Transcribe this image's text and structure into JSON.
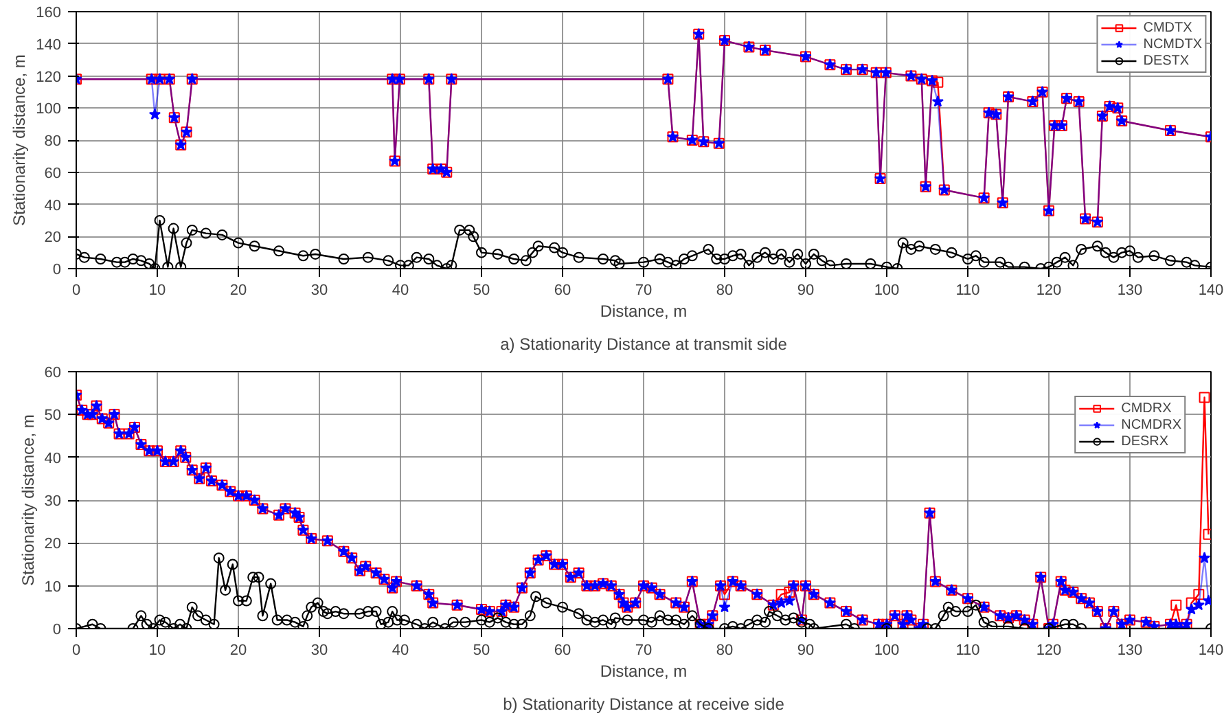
{
  "chart_data": [
    {
      "type": "line",
      "title": "a) Stationarity Distance at transmit side",
      "xlabel": "Distance, m",
      "ylabel": "Stationarity distance, m",
      "xlim": [
        0,
        140
      ],
      "xticks": [
        0,
        10,
        20,
        30,
        40,
        50,
        60,
        70,
        80,
        90,
        100,
        110,
        120,
        130,
        140
      ],
      "ylim": [
        0,
        160
      ],
      "yticks": [
        0,
        20,
        40,
        60,
        80,
        100,
        120,
        140,
        160
      ],
      "grid": true,
      "legend": "top right",
      "series": [
        {
          "name": "CMDTX",
          "color": "#ff0000",
          "marker": "square",
          "x": [
            0,
            9.3,
            10.3,
            11.5,
            12.1,
            12.9,
            13.6,
            14.3,
            39,
            39.3,
            39.9,
            43.5,
            44,
            45,
            45.7,
            46.3,
            73,
            73.6,
            76,
            76.8,
            77.4,
            79.3,
            80,
            83,
            85,
            90,
            93,
            95,
            97,
            98.7,
            99.2,
            99.9,
            103,
            104.3,
            104.8,
            105.6,
            106.3,
            107.1,
            112,
            112.6,
            113.5,
            114.3,
            115,
            118,
            119.2,
            120,
            120.7,
            121.6,
            122.2,
            123.7,
            124.5,
            126,
            126.6,
            127.5,
            128.5,
            129,
            135,
            140
          ],
          "values": [
            118,
            118,
            118,
            118,
            94,
            77,
            85,
            118,
            118,
            67,
            118,
            118,
            62,
            62,
            60,
            118,
            118,
            82,
            80,
            146,
            79,
            78,
            142,
            138,
            136,
            132,
            127,
            124,
            124,
            122,
            56,
            122,
            120,
            118,
            51,
            117,
            116,
            49,
            44,
            97,
            96,
            41,
            107,
            104,
            110,
            36,
            89,
            89,
            106,
            104,
            31,
            29,
            95,
            101,
            100,
            92,
            86,
            82
          ]
        },
        {
          "name": "NCMDTX",
          "color": "#0000ff",
          "marker": "star",
          "x": [
            0,
            9.3,
            9.7,
            10.3,
            11.5,
            12.1,
            12.9,
            13.6,
            14.3,
            39,
            39.3,
            39.9,
            43.5,
            44,
            45,
            45.7,
            46.3,
            73,
            73.6,
            76,
            76.8,
            77.4,
            79.3,
            80,
            83,
            85,
            90,
            93,
            95,
            97,
            98.7,
            99.2,
            99.9,
            103,
            104.3,
            104.8,
            105.6,
            106.3,
            107.1,
            112,
            112.6,
            113.5,
            114.3,
            115,
            118,
            119.2,
            120,
            120.7,
            121.6,
            122.2,
            123.7,
            124.5,
            126,
            126.6,
            127.5,
            128.5,
            129,
            135,
            140
          ],
          "values": [
            118,
            118,
            96,
            118,
            118,
            94,
            77,
            85,
            118,
            118,
            67,
            118,
            118,
            62,
            62,
            60,
            118,
            118,
            82,
            80,
            146,
            79,
            78,
            142,
            138,
            136,
            132,
            127,
            124,
            124,
            122,
            56,
            122,
            120,
            118,
            51,
            117,
            104,
            49,
            44,
            97,
            96,
            41,
            107,
            104,
            110,
            36,
            89,
            89,
            106,
            104,
            31,
            29,
            95,
            101,
            100,
            92,
            86,
            82
          ]
        },
        {
          "name": "DESTX",
          "color": "#000000",
          "marker": "circle",
          "x": [
            0,
            1,
            3,
            5,
            6,
            7,
            8,
            9,
            9.7,
            10.3,
            11.3,
            12,
            12.9,
            13.6,
            14.3,
            16,
            18,
            20,
            22,
            25,
            28,
            29.5,
            33,
            36,
            38.5,
            40,
            41,
            42,
            43.5,
            44.5,
            45.7,
            46.3,
            47.3,
            48.5,
            49,
            50,
            52,
            54,
            55.5,
            56.3,
            57,
            59,
            60,
            62,
            65,
            66.5,
            67,
            70,
            72,
            73,
            74,
            75,
            76,
            78,
            79,
            80,
            81,
            82,
            83,
            84,
            85,
            86,
            87,
            88,
            89,
            90,
            91,
            92,
            93,
            95,
            98,
            100,
            101.3,
            102,
            103,
            104,
            106,
            108,
            110,
            111,
            112,
            114,
            115,
            117,
            119,
            120,
            121,
            122,
            123,
            124,
            126,
            127,
            128,
            129,
            130,
            131,
            133,
            135,
            137,
            138,
            140
          ],
          "values": [
            9,
            7,
            6,
            4,
            4,
            6,
            5,
            3,
            0,
            30,
            1,
            25,
            1,
            16,
            24,
            22,
            21,
            16,
            14,
            11,
            8,
            9,
            6,
            7,
            5,
            2,
            2,
            7,
            6,
            2,
            0,
            2,
            24,
            24,
            20,
            10,
            9,
            6,
            5,
            10,
            14,
            13,
            10,
            7,
            6,
            5,
            3,
            4,
            6,
            4,
            2,
            6,
            8,
            12,
            6,
            6,
            8,
            9,
            2,
            7,
            10,
            6,
            9,
            4,
            9,
            3,
            9,
            5,
            2,
            3,
            3,
            1,
            0,
            16,
            12,
            14,
            12,
            10,
            6,
            8,
            4,
            4,
            1,
            1,
            0,
            1,
            4,
            7,
            2,
            12,
            14,
            10,
            7,
            10,
            11,
            7,
            8,
            5,
            4,
            2,
            1
          ]
        }
      ]
    },
    {
      "type": "line",
      "title": "b) Stationarity Distance at receive side",
      "xlabel": "Distance, m",
      "ylabel": "Stationarity distance, m",
      "xlim": [
        0,
        140
      ],
      "xticks": [
        0,
        10,
        20,
        30,
        40,
        50,
        60,
        70,
        80,
        90,
        100,
        110,
        120,
        130,
        140
      ],
      "ylim": [
        0,
        60
      ],
      "yticks": [
        0,
        10,
        20,
        30,
        40,
        50,
        60
      ],
      "grid": true,
      "legend": "top right",
      "series": [
        {
          "name": "CMDRX",
          "color": "#ff0000",
          "marker": "square",
          "x": [
            0,
            0.7,
            1.4,
            2,
            2.5,
            3.2,
            4,
            4.7,
            5.3,
            6.5,
            7.2,
            8,
            9,
            10,
            11,
            12,
            12.9,
            13.5,
            14.3,
            15.2,
            16,
            16.7,
            18,
            19,
            20,
            21,
            22,
            23,
            25,
            25.8,
            27,
            27.5,
            28,
            29,
            31,
            33,
            34,
            35,
            35.7,
            37,
            38,
            39,
            39.5,
            42,
            43.5,
            44,
            47,
            50,
            51,
            52.5,
            53,
            54,
            55,
            56,
            57,
            58,
            59,
            60,
            61,
            62,
            63,
            64,
            65,
            66,
            67,
            67.5,
            68,
            69,
            70,
            71,
            72,
            74,
            75,
            76,
            77,
            78,
            78.5,
            79.5,
            80,
            81,
            82,
            84,
            86,
            87,
            88,
            88.5,
            89.5,
            90,
            91,
            93,
            95,
            97,
            99,
            100,
            101,
            102,
            102.5,
            103,
            104,
            104.5,
            105.3,
            106,
            108,
            110,
            112,
            114,
            115,
            116,
            117,
            118,
            119,
            120,
            120.5,
            121.5,
            122,
            123,
            124,
            125,
            126,
            127,
            128,
            129,
            130,
            132,
            133,
            135,
            135.7,
            136.3,
            137,
            137.6,
            138.5,
            139.2,
            139.7
          ],
          "values": [
            54.5,
            51,
            50,
            50,
            52,
            49,
            48,
            50,
            45.5,
            45.5,
            47,
            43,
            41.5,
            41.5,
            39,
            39,
            41.5,
            40,
            37,
            35,
            37.5,
            34.5,
            33.5,
            32,
            31,
            31,
            30,
            28,
            26.5,
            28,
            27,
            26,
            23,
            21,
            20.5,
            18,
            16.5,
            13.5,
            14.5,
            13,
            11.5,
            9.5,
            11,
            10,
            8,
            6,
            5.5,
            4.5,
            4,
            4,
            5.5,
            5,
            9.5,
            13,
            16,
            17,
            15,
            15,
            12,
            13,
            10,
            10,
            10.5,
            10,
            8,
            6,
            5,
            6,
            10,
            9.5,
            8,
            6,
            5,
            11,
            1,
            1,
            3,
            10,
            8,
            11,
            10,
            8,
            5.5,
            8,
            8.5,
            10,
            2,
            10,
            8,
            6,
            4,
            2,
            1,
            1,
            3,
            1,
            3,
            2,
            0,
            1,
            27,
            11,
            9,
            7,
            5,
            3,
            2.5,
            3,
            2,
            1,
            12,
            0,
            1,
            11,
            9,
            8.5,
            7,
            6,
            4,
            0,
            4,
            1,
            2,
            1.5,
            0.5,
            1,
            5.5,
            0,
            1,
            6,
            8,
            54,
            22
          ]
        },
        {
          "name": "NCMDRX",
          "color": "#0000ff",
          "marker": "star",
          "x": [
            0,
            0.7,
            1.4,
            2,
            2.5,
            3.2,
            4,
            4.7,
            5.3,
            6.5,
            7.2,
            8,
            9,
            10,
            11,
            12,
            12.9,
            13.5,
            14.3,
            15.2,
            16,
            16.7,
            18,
            19,
            20,
            21,
            22,
            23,
            25,
            25.8,
            27,
            27.5,
            28,
            29,
            31,
            33,
            34,
            35,
            35.7,
            37,
            38,
            39,
            39.5,
            42,
            43.5,
            44,
            47,
            50,
            51,
            52.5,
            53,
            54,
            55,
            56,
            57,
            58,
            59,
            60,
            61,
            62,
            63,
            64,
            65,
            66,
            67,
            67.5,
            68,
            69,
            70,
            71,
            72,
            74,
            75,
            76,
            77,
            78,
            78.5,
            79.5,
            80,
            81,
            82,
            84,
            86,
            87,
            88,
            88.5,
            89.5,
            90,
            91,
            93,
            95,
            97,
            99,
            100,
            101,
            102,
            102.5,
            103,
            104,
            104.5,
            105.3,
            106,
            108,
            110,
            112,
            114,
            115,
            116,
            117,
            118,
            119,
            120,
            120.5,
            121.5,
            122,
            123,
            124,
            125,
            126,
            127,
            128,
            129,
            130,
            132,
            133,
            135,
            135.7,
            136.3,
            137,
            137.6,
            138.5,
            139.2,
            139.7
          ],
          "values": [
            54.5,
            51,
            50,
            50,
            52,
            49,
            48,
            50,
            45.5,
            45.5,
            47,
            43,
            41.5,
            41.5,
            39,
            39,
            41.5,
            40,
            37,
            35,
            37.5,
            34.5,
            33.5,
            32,
            31,
            31,
            30,
            28,
            26.5,
            28,
            27,
            26,
            23,
            21,
            20.5,
            18,
            16.5,
            13.5,
            14.5,
            13,
            11.5,
            9.5,
            11,
            10,
            8,
            6,
            5.5,
            4.5,
            4,
            4,
            5.5,
            5,
            9.5,
            13,
            16,
            17,
            15,
            15,
            12,
            13,
            10,
            10,
            10.5,
            10,
            8,
            6,
            5,
            6,
            10,
            9.5,
            8,
            6,
            5,
            11,
            1,
            1,
            3,
            10,
            5,
            11,
            10,
            8,
            5.5,
            6,
            6.5,
            10,
            2,
            10,
            8,
            6,
            4,
            2,
            1,
            1,
            3,
            1,
            3,
            2,
            0,
            1,
            27,
            11,
            9,
            7,
            5,
            3,
            2.5,
            3,
            2,
            1,
            12,
            0,
            1,
            11,
            9,
            8.5,
            7,
            6,
            4,
            0,
            4,
            1,
            2,
            1.5,
            0.5,
            1,
            1,
            0,
            1,
            4.5,
            5.5,
            16.5,
            6.5
          ]
        },
        {
          "name": "DESRX",
          "color": "#000000",
          "marker": "circle",
          "x": [
            0,
            2,
            3,
            7,
            8,
            8.7,
            9.5,
            10.3,
            11,
            12,
            12.8,
            13.6,
            14.3,
            15,
            16,
            17,
            17.6,
            18.4,
            19.3,
            20,
            21,
            21.8,
            22.5,
            23,
            24,
            24.8,
            26,
            27,
            28,
            28.5,
            29,
            29.8,
            30.5,
            31,
            32,
            33,
            35,
            36,
            37,
            37.6,
            38.5,
            39,
            39.6,
            40.5,
            42,
            43,
            44,
            45.5,
            46.5,
            48,
            50,
            51,
            52,
            53,
            54,
            55,
            56,
            56.7,
            58,
            60,
            62,
            63,
            64,
            65,
            66,
            66.5,
            68,
            70,
            71,
            72,
            73,
            74,
            75,
            76,
            77,
            78,
            80,
            81,
            82,
            83,
            84,
            85,
            85.5,
            86.5,
            87.5,
            88.5,
            89.5,
            90.5,
            91,
            95,
            96,
            100,
            105,
            106,
            107,
            107.6,
            108.5,
            110,
            111,
            112,
            113,
            115,
            117,
            120,
            122,
            123,
            124,
            140
          ],
          "values": [
            0,
            1,
            0,
            0,
            3,
            1,
            0,
            2,
            1.5,
            0,
            1,
            0,
            5,
            3,
            2,
            1,
            16.5,
            9,
            15,
            6.5,
            6.5,
            12,
            12,
            3,
            10.5,
            2,
            2,
            1.5,
            0.5,
            3,
            5,
            6,
            4,
            3.5,
            4,
            3.5,
            3.5,
            4,
            4,
            1,
            1.5,
            4,
            2,
            2,
            1,
            0,
            1.5,
            0,
            1.5,
            1.5,
            2,
            1.5,
            2.5,
            1.5,
            1,
            1,
            3,
            7.5,
            6,
            5,
            3.5,
            2,
            1.5,
            2,
            1,
            2.5,
            2,
            2,
            1.5,
            3,
            2,
            2,
            1,
            3,
            1,
            0,
            0,
            0.5,
            0,
            1,
            2,
            1.5,
            4,
            3,
            2,
            2.5,
            1.5,
            1,
            0,
            1,
            0,
            0,
            0,
            0,
            3,
            5,
            4,
            4,
            5.5,
            1.5,
            0.5,
            0.5,
            0,
            0,
            1,
            1,
            0,
            0
          ]
        }
      ]
    }
  ]
}
